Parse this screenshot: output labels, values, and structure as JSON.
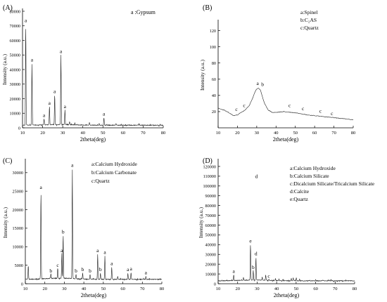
{
  "chart_data": [
    {
      "panel": "(A)",
      "type": "line",
      "xlabel": "2theta(deg)",
      "ylabel": "Intensity (a.u.)",
      "xlim": [
        10,
        80
      ],
      "ylim": [
        0,
        80000
      ],
      "xticks": [
        10,
        20,
        30,
        40,
        50,
        60,
        70,
        80
      ],
      "yticks": [
        0,
        10000,
        20000,
        30000,
        40000,
        50000,
        60000,
        70000,
        80000
      ],
      "legend": [
        "a :Gypsum"
      ],
      "baseline": 1800,
      "peaks": [
        {
          "x": 11.6,
          "y": 71000,
          "label": "a"
        },
        {
          "x": 14.7,
          "y": 44000,
          "label": "a"
        },
        {
          "x": 20.7,
          "y": 6000,
          "label": "a"
        },
        {
          "x": 23.4,
          "y": 14500,
          "label": "a"
        },
        {
          "x": 26.0,
          "y": 22500,
          "label": "a"
        },
        {
          "x": 29.1,
          "y": 50000,
          "label": "a"
        },
        {
          "x": 31.1,
          "y": 12000,
          "label": "a"
        },
        {
          "x": 33.4,
          "y": 4000
        },
        {
          "x": 36.0,
          "y": 3000
        },
        {
          "x": 43.3,
          "y": 3500
        },
        {
          "x": 48.1,
          "y": 3200
        },
        {
          "x": 50.5,
          "y": 7000,
          "label": "a"
        },
        {
          "x": 56.5,
          "y": 3000
        },
        {
          "x": 68.0,
          "y": 2500
        }
      ]
    },
    {
      "panel": "(B)",
      "type": "line",
      "xlabel": "2theta(deg)",
      "ylabel": "Intensity (a.u.)",
      "xlim": [
        10,
        80
      ],
      "ylim": [
        0,
        130
      ],
      "xticks": [
        10,
        20,
        30,
        40,
        50,
        60,
        70,
        80
      ],
      "yticks": [
        20,
        40,
        60,
        80,
        100,
        120
      ],
      "legend": [
        "a:Spinel",
        "b:C₂AS",
        "c:Quartz"
      ],
      "curve": {
        "x": [
          10,
          13,
          16,
          18,
          20,
          22,
          24,
          26,
          28,
          29,
          30,
          31,
          32,
          33,
          34,
          36,
          38,
          40,
          44,
          48,
          52,
          56,
          60,
          64,
          68,
          72,
          76,
          80
        ],
        "y": [
          24,
          22,
          18,
          15,
          16,
          19,
          22,
          27,
          37,
          44,
          48,
          49,
          46,
          38,
          30,
          22,
          19,
          19,
          20,
          19,
          18,
          16,
          15,
          14,
          13,
          12,
          11,
          10
        ]
      },
      "peak_labels": [
        {
          "x": 30.5,
          "y": 51,
          "label": "a"
        },
        {
          "x": 33.0,
          "y": 50,
          "label": "b"
        },
        {
          "x": 19.5,
          "y": 19,
          "label": "c"
        },
        {
          "x": 23.5,
          "y": 24,
          "label": "c"
        },
        {
          "x": 47.0,
          "y": 24,
          "label": "c"
        },
        {
          "x": 54.0,
          "y": 20,
          "label": "c"
        },
        {
          "x": 63.0,
          "y": 17,
          "label": "c"
        },
        {
          "x": 69.0,
          "y": 14,
          "label": "c"
        }
      ]
    },
    {
      "panel": "(C)",
      "type": "line",
      "xlabel": "2theta(deg)",
      "ylabel": "Intensity (a.u.)",
      "xlim": [
        10,
        80
      ],
      "ylim": [
        0,
        33000
      ],
      "xticks": [
        10,
        20,
        30,
        40,
        50,
        60,
        70,
        80
      ],
      "yticks": [
        0,
        5000,
        10000,
        15000,
        20000,
        25000,
        30000
      ],
      "legend": [
        "a:Calcium Hydroxide",
        "b:Calcium Carbonate",
        "c:Quartz"
      ],
      "baseline": 1200,
      "peaks": [
        {
          "x": 11.5,
          "y": 5000
        },
        {
          "x": 18.0,
          "y": 25000,
          "label": "a"
        },
        {
          "x": 23.1,
          "y": 2500,
          "label": "b"
        },
        {
          "x": 26.6,
          "y": 4000,
          "label": "c"
        },
        {
          "x": 28.7,
          "y": 8000,
          "label": "a"
        },
        {
          "x": 29.4,
          "y": 13000,
          "label": "b"
        },
        {
          "x": 34.1,
          "y": 31000,
          "label": "a"
        },
        {
          "x": 36.0,
          "y": 2500,
          "label": "b"
        },
        {
          "x": 39.4,
          "y": 2800,
          "label": "b"
        },
        {
          "x": 43.2,
          "y": 2500,
          "label": "b"
        },
        {
          "x": 47.1,
          "y": 8000,
          "label": "a"
        },
        {
          "x": 48.5,
          "y": 2800,
          "label": "b"
        },
        {
          "x": 50.8,
          "y": 7500,
          "label": "a"
        },
        {
          "x": 54.3,
          "y": 4500,
          "label": "a"
        },
        {
          "x": 57.4,
          "y": 2000
        },
        {
          "x": 62.6,
          "y": 2800,
          "label": "a"
        },
        {
          "x": 64.2,
          "y": 3000,
          "label": "a"
        },
        {
          "x": 71.8,
          "y": 2000,
          "label": "a"
        }
      ]
    },
    {
      "panel": "(D)",
      "type": "line",
      "xlabel": "2theta(deg)",
      "ylabel": "Intensity (a.u.)",
      "xlim": [
        10,
        80
      ],
      "ylim": [
        0,
        125000
      ],
      "xticks": [
        10,
        20,
        30,
        40,
        50,
        60,
        70,
        80
      ],
      "yticks": [
        0,
        10000,
        20000,
        30000,
        40000,
        50000,
        60000,
        70000,
        80000,
        90000,
        100000,
        110000,
        120000
      ],
      "legend": [
        "a:Calcium Hydroxide",
        "b:Calcium Silicate",
        "c:Dicalcium Silicate/Tricalcium Silicate",
        "d:Calcite",
        "e:Quartz"
      ],
      "baseline": 3000,
      "peaks": [
        {
          "x": 18.0,
          "y": 9000,
          "label": "a"
        },
        {
          "x": 23.0,
          "y": 5500
        },
        {
          "x": 26.6,
          "y": 40000,
          "label": "e"
        },
        {
          "x": 28.0,
          "y": 13000,
          "label": "b"
        },
        {
          "x": 29.4,
          "y": 27000,
          "label": "d"
        },
        {
          "x": 32.6,
          "y": 6000
        },
        {
          "x": 34.4,
          "y": 9000
        },
        {
          "x": 36.0,
          "y": 4000,
          "label": "c"
        },
        {
          "x": 39.4,
          "y": 5000
        },
        {
          "x": 41.2,
          "y": 4500
        },
        {
          "x": 43.2,
          "y": 4500
        },
        {
          "x": 47.5,
          "y": 5500
        },
        {
          "x": 48.5,
          "y": 6000
        },
        {
          "x": 50.1,
          "y": 6000
        },
        {
          "x": 51.8,
          "y": 5000
        },
        {
          "x": 57.0,
          "y": 4000
        },
        {
          "x": 60.0,
          "y": 4000
        },
        {
          "x": 64.0,
          "y": 3500
        },
        {
          "x": 68.0,
          "y": 3500
        }
      ],
      "extra_labels": [
        {
          "x": 29.6,
          "y": 108000,
          "label": "d"
        }
      ]
    }
  ]
}
